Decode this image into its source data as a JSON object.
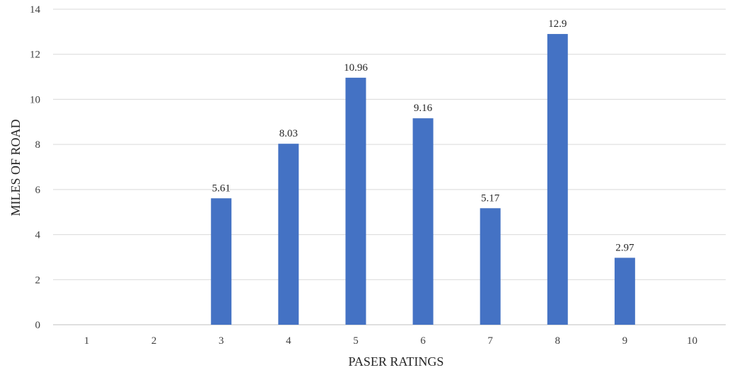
{
  "chart_data": {
    "type": "bar",
    "categories": [
      "1",
      "2",
      "3",
      "4",
      "5",
      "6",
      "7",
      "8",
      "9",
      "10"
    ],
    "values": [
      0,
      0,
      5.61,
      8.03,
      10.96,
      9.16,
      5.17,
      12.9,
      2.97,
      0
    ],
    "data_labels": [
      "",
      "",
      "5.61",
      "8.03",
      "10.96",
      "9.16",
      "5.17",
      "12.9",
      "2.97",
      ""
    ],
    "y_ticks": [
      "0",
      "2",
      "4",
      "6",
      "8",
      "10",
      "12",
      "14"
    ],
    "xlabel": "PASER RATINGS",
    "ylabel": "MILES OF ROAD",
    "ylim": [
      0,
      14
    ],
    "grid": "horizontal",
    "legend": "none",
    "colors": {
      "bar": "#4472C4",
      "grid": "#D9D9D9"
    }
  }
}
